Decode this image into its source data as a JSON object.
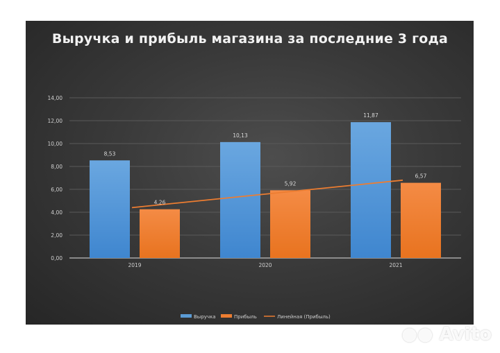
{
  "chart_data": {
    "type": "bar",
    "title": "Выручка и прибыль магазина за последние 3 года",
    "categories": [
      "2019",
      "2020",
      "2021"
    ],
    "series": [
      {
        "name": "Выручка",
        "values": [
          8.53,
          10.13,
          11.87
        ],
        "color": "#5b9bd5"
      },
      {
        "name": "Прибыль",
        "values": [
          4.26,
          5.92,
          6.57
        ],
        "color": "#ed7d31"
      }
    ],
    "trendline": {
      "name": "Линейная (Прибыль)",
      "of_series": "Прибыль",
      "type": "linear",
      "color": "#ed7d31"
    },
    "data_labels": {
      "Выручка": [
        "8,53",
        "10,13",
        "11,87"
      ],
      "Прибыль": [
        "4,26",
        "5,92",
        "6,57"
      ]
    },
    "xlabel": "",
    "ylabel": "",
    "ylim": [
      0,
      14
    ],
    "yticks": [
      "0,00",
      "2,00",
      "4,00",
      "6,00",
      "8,00",
      "10,00",
      "12,00",
      "14,00"
    ],
    "grid": true,
    "legend_position": "bottom"
  },
  "legend": [
    {
      "label": "Выручка",
      "kind": "bar",
      "color": "#5b9bd5"
    },
    {
      "label": "Прибыль",
      "kind": "bar",
      "color": "#ed7d31"
    },
    {
      "label": "Линейная (Прибыль)",
      "kind": "line",
      "color": "#ed7d31"
    }
  ],
  "watermark": {
    "text": "Avito"
  }
}
